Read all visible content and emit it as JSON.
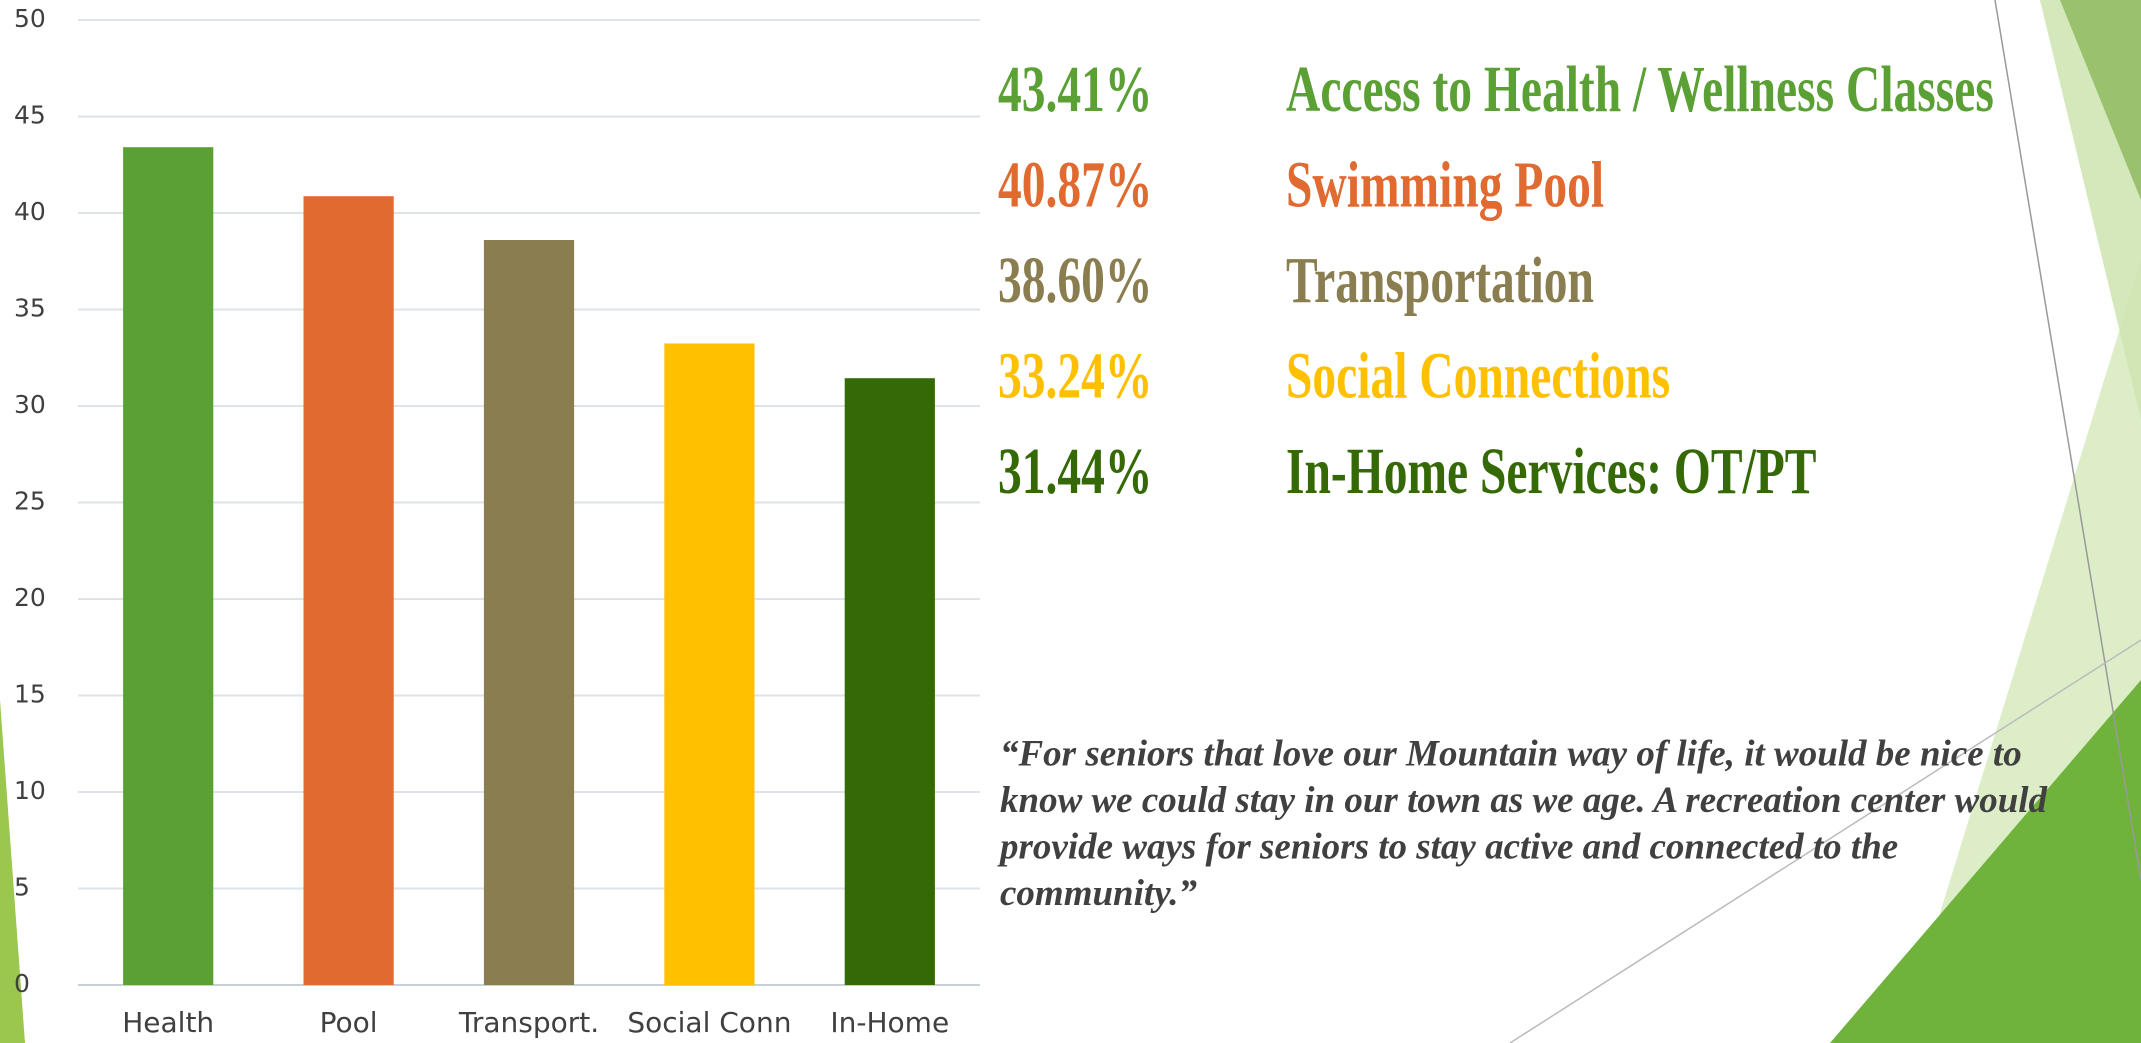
{
  "chart_data": {
    "type": "bar",
    "categories": [
      "Health",
      "Pool",
      "Transport.",
      "Social Conn",
      "In-Home"
    ],
    "values": [
      43.41,
      40.87,
      38.6,
      33.24,
      31.44
    ],
    "value_labels": [
      "43.41%",
      "40.87%",
      "38.60%",
      "33.24%",
      "31.44%"
    ],
    "colors": [
      "#5aa034",
      "#e06a30",
      "#8a7d4f",
      "#ffc000",
      "#346905"
    ],
    "ylim": [
      0,
      50
    ],
    "yticks": [
      0,
      5,
      10,
      15,
      20,
      25,
      30,
      35,
      40,
      45,
      50
    ],
    "grid": true
  },
  "descriptions": [
    "Access to Health / Wellness Classes",
    "Swimming Pool",
    "Transportation",
    "Social Connections",
    "In-Home Services:  OT/PT"
  ],
  "quote": {
    "lines": [
      "“For seniors that love our Mountain way of life, it would be nice to",
      "know we could stay in our town as we age. A recreation center would",
      "provide ways for seniors to stay active and connected to the",
      "community.”"
    ]
  }
}
